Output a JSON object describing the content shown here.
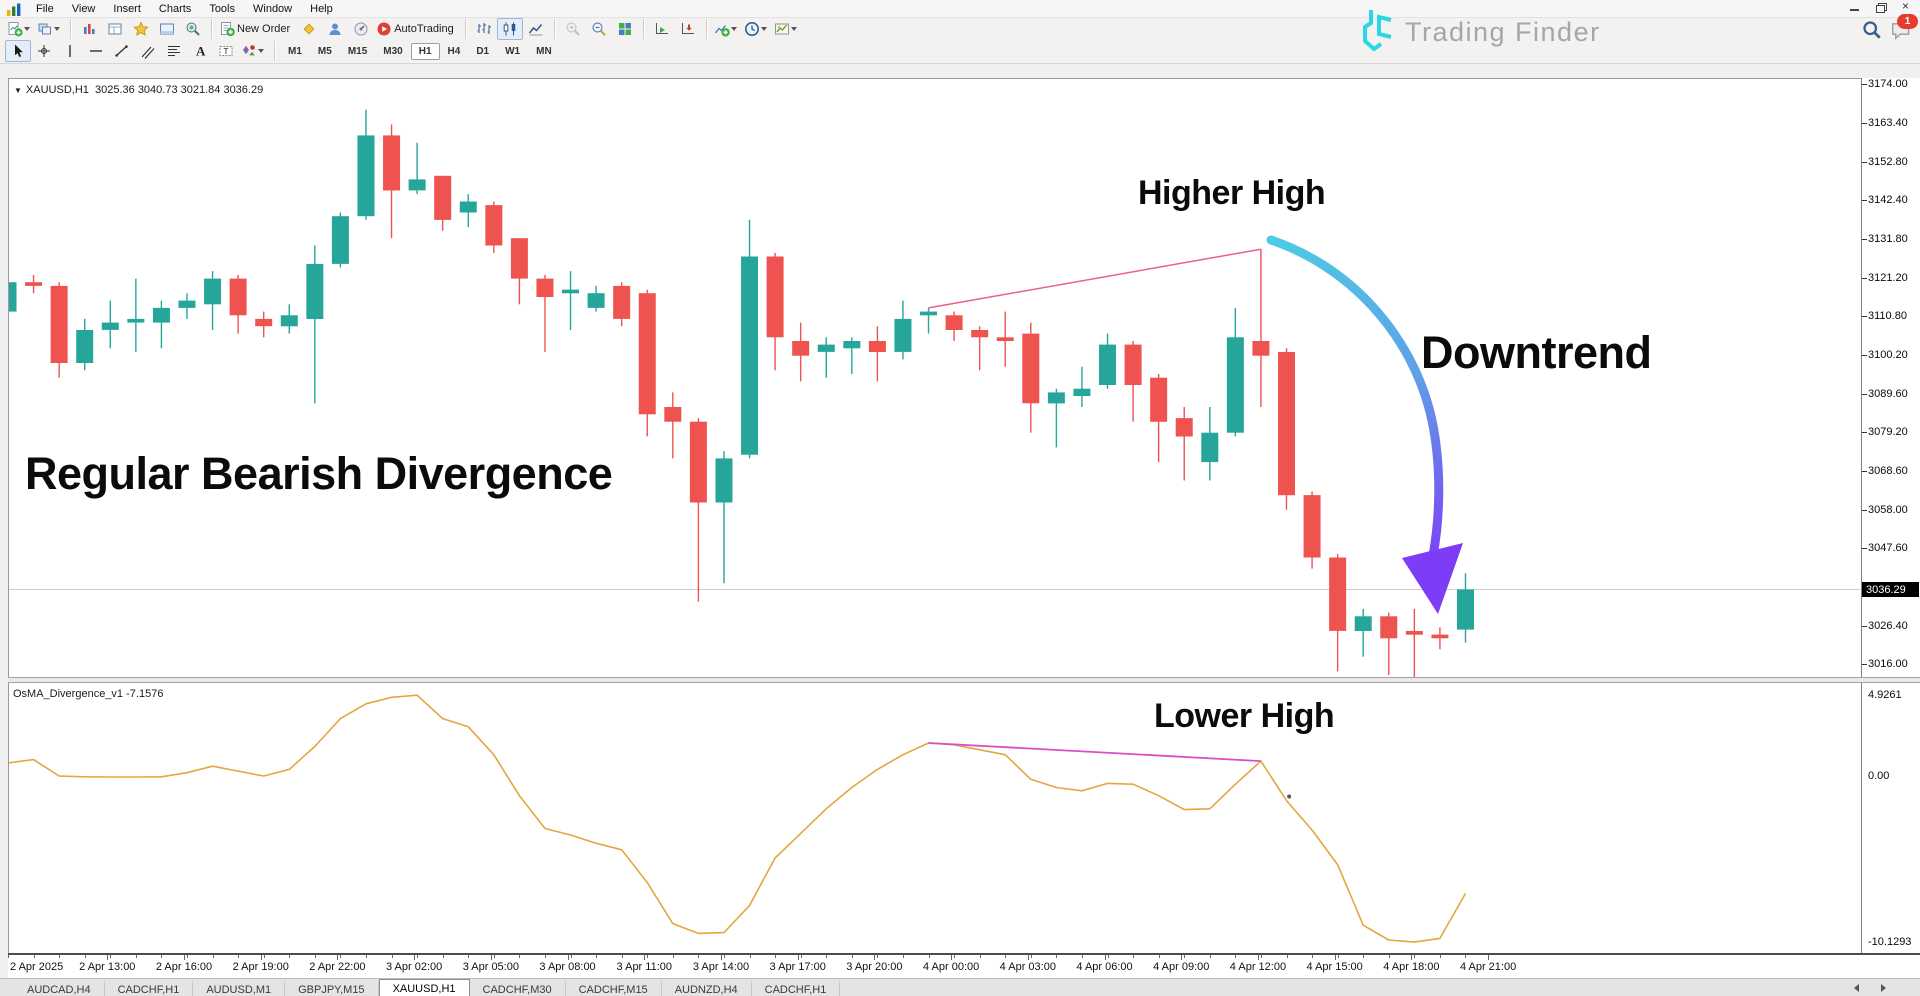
{
  "menu": {
    "items": [
      "File",
      "View",
      "Insert",
      "Charts",
      "Tools",
      "Window",
      "Help"
    ]
  },
  "window_controls": [
    {
      "name": "minimize-button"
    },
    {
      "name": "restore-button"
    },
    {
      "name": "close-button"
    }
  ],
  "header": {
    "logo_text": "Trading Finder",
    "notification_count": "1",
    "icons": [
      "search-icon",
      "chat-icon"
    ]
  },
  "toolbar_main": {
    "groups": [
      {
        "items": [
          {
            "icon": "new-chart",
            "dropdown": true
          },
          {
            "icon": "profiles",
            "dropdown": true
          }
        ]
      },
      {
        "items": [
          {
            "icon": "market-watch"
          },
          {
            "icon": "data-window"
          },
          {
            "icon": "navigator"
          },
          {
            "icon": "terminal"
          },
          {
            "icon": "strategy-tester"
          }
        ]
      },
      {
        "items": [
          {
            "icon": "new-order",
            "label": "New Order"
          },
          {
            "icon": "metaeditor"
          },
          {
            "icon": "community"
          },
          {
            "icon": "signals"
          },
          {
            "icon": "autotrading",
            "label": "AutoTrading"
          }
        ]
      },
      {
        "items": [
          {
            "icon": "bar-chart"
          },
          {
            "icon": "candlestick",
            "pressed": true
          },
          {
            "icon": "line-chart"
          }
        ]
      },
      {
        "items": [
          {
            "icon": "zoom-in",
            "disabled": true
          },
          {
            "icon": "zoom-out"
          },
          {
            "icon": "tile-windows"
          }
        ]
      },
      {
        "items": [
          {
            "icon": "auto-scroll"
          },
          {
            "icon": "chart-shift"
          }
        ]
      },
      {
        "items": [
          {
            "icon": "indicators",
            "dropdown": true
          },
          {
            "icon": "periods",
            "dropdown": true
          },
          {
            "icon": "templates",
            "dropdown": true
          }
        ]
      }
    ]
  },
  "toolbar_draw": {
    "tools": [
      {
        "icon": "cursor",
        "pressed": true
      },
      {
        "icon": "crosshair"
      },
      {
        "icon": "vertical-line"
      },
      {
        "icon": "horizontal-line"
      },
      {
        "icon": "trendline"
      },
      {
        "icon": "channel"
      },
      {
        "icon": "fibonacci"
      },
      {
        "icon": "text"
      },
      {
        "icon": "label"
      },
      {
        "icon": "shapes",
        "dropdown": true
      }
    ],
    "timeframes": [
      "M1",
      "M5",
      "M15",
      "M30",
      "H1",
      "H4",
      "D1",
      "W1",
      "MN"
    ],
    "active_timeframe": "H1"
  },
  "chart_data": {
    "type": "candlestick",
    "symbol": "XAUUSD,H1",
    "symbol_line": "XAUUSD,H1  3025.36 3040.73 3021.84 3036.29",
    "ohlc_display": {
      "open": "3025.36",
      "high": "3040.73",
      "low": "3021.84",
      "close": "3036.29"
    },
    "up_color": "#26a69a",
    "down_color": "#ef5350",
    "price_axis": {
      "max": 3174.0,
      "min": 3016.0,
      "step": 10.6,
      "ticks": [
        "3174.00",
        "3163.40",
        "3152.80",
        "3142.40",
        "3131.80",
        "3121.20",
        "3110.80",
        "3100.20",
        "3089.60",
        "3079.20",
        "3068.60",
        "3058.00",
        "3047.60",
        "3026.40",
        "3016.00"
      ],
      "current_price": "3036.29",
      "current_price_value": 3036.29
    },
    "time_labels": [
      "2 Apr 2025",
      "2 Apr 13:00",
      "2 Apr 16:00",
      "2 Apr 19:00",
      "2 Apr 22:00",
      "3 Apr 02:00",
      "3 Apr 05:00",
      "3 Apr 08:00",
      "3 Apr 11:00",
      "3 Apr 14:00",
      "3 Apr 17:00",
      "3 Apr 20:00",
      "4 Apr 00:00",
      "4 Apr 03:00",
      "4 Apr 06:00",
      "4 Apr 09:00",
      "4 Apr 12:00",
      "4 Apr 15:00",
      "4 Apr 18:00",
      "4 Apr 21:00"
    ],
    "candles": [
      [
        3112,
        3121,
        3110,
        3120
      ],
      [
        3120,
        3122,
        3117,
        3119
      ],
      [
        3119,
        3120,
        3094,
        3098
      ],
      [
        3098,
        3110,
        3096,
        3107
      ],
      [
        3107,
        3115,
        3102,
        3109
      ],
      [
        3109,
        3121,
        3101,
        3110
      ],
      [
        3109,
        3115,
        3102,
        3113
      ],
      [
        3113,
        3117,
        3110,
        3115
      ],
      [
        3114,
        3123,
        3107,
        3121
      ],
      [
        3121,
        3122,
        3106,
        3111
      ],
      [
        3110,
        3112,
        3105,
        3108
      ],
      [
        3108,
        3114,
        3106,
        3111
      ],
      [
        3110,
        3130,
        3087,
        3125
      ],
      [
        3125,
        3139,
        3124,
        3138
      ],
      [
        3138,
        3167,
        3137,
        3160
      ],
      [
        3160,
        3163,
        3132,
        3145
      ],
      [
        3145,
        3158,
        3144,
        3148
      ],
      [
        3149,
        3149,
        3134,
        3137
      ],
      [
        3139,
        3144,
        3135,
        3142
      ],
      [
        3141,
        3142,
        3128,
        3130
      ],
      [
        3132,
        3132,
        3114,
        3121
      ],
      [
        3121,
        3122,
        3101,
        3116
      ],
      [
        3117,
        3123,
        3107,
        3118
      ],
      [
        3113,
        3119,
        3112,
        3117
      ],
      [
        3119,
        3120,
        3108,
        3110
      ],
      [
        3117,
        3118,
        3078,
        3084
      ],
      [
        3086,
        3090,
        3072,
        3082
      ],
      [
        3082,
        3083,
        3033,
        3060
      ],
      [
        3060,
        3074,
        3038,
        3072
      ],
      [
        3073,
        3137,
        3072,
        3127
      ],
      [
        3127,
        3128,
        3096,
        3105
      ],
      [
        3104,
        3109,
        3093,
        3100
      ],
      [
        3101,
        3105,
        3094,
        3103
      ],
      [
        3102,
        3105,
        3095,
        3104
      ],
      [
        3104,
        3108,
        3093,
        3101
      ],
      [
        3101,
        3115,
        3099,
        3110
      ],
      [
        3111,
        3113,
        3106,
        3112
      ],
      [
        3111,
        3112,
        3104,
        3107
      ],
      [
        3107,
        3108,
        3096,
        3105
      ],
      [
        3105,
        3112,
        3097,
        3104
      ],
      [
        3106,
        3109,
        3079,
        3087
      ],
      [
        3087,
        3091,
        3075,
        3090
      ],
      [
        3089,
        3097,
        3086,
        3091
      ],
      [
        3092,
        3106,
        3091,
        3103
      ],
      [
        3103,
        3104,
        3082,
        3092
      ],
      [
        3094,
        3095,
        3071,
        3082
      ],
      [
        3083,
        3086,
        3066,
        3078
      ],
      [
        3071,
        3086,
        3066,
        3079
      ],
      [
        3079,
        3113,
        3078,
        3105
      ],
      [
        3104,
        3129,
        3086,
        3100
      ],
      [
        3101,
        3102,
        3058,
        3062
      ],
      [
        3062,
        3063,
        3042,
        3045
      ],
      [
        3045,
        3046,
        3014,
        3025
      ],
      [
        3025,
        3031,
        3018,
        3029
      ],
      [
        3029,
        3030,
        3013,
        3023
      ],
      [
        3025,
        3031,
        3012,
        3024
      ],
      [
        3024,
        3026,
        3020,
        3023
      ],
      [
        3025.36,
        3040.73,
        3021.84,
        3036.29
      ]
    ],
    "annotations": {
      "main": "Regular Bearish Divergence",
      "higher_high": "Higher High",
      "downtrend": "Downtrend",
      "lower_high": "Lower High"
    },
    "price_trendline": {
      "color": "#e8608e",
      "from": {
        "index": 36,
        "price": 3113
      },
      "to": {
        "index": 49,
        "price": 3129
      }
    },
    "arrow": {
      "gradient": [
        "#4ecbe4",
        "#5f9fe8",
        "#7d3cf5"
      ]
    },
    "osma": {
      "label": "OsMA_Divergence_v1",
      "value": "-7.1576",
      "color": "#e7a53f",
      "axis_labels": [
        "4.9261",
        "0.00",
        "-10.1293"
      ],
      "axis_values": [
        4.9261,
        0.0,
        -10.1293
      ],
      "values": [
        0.8,
        1.0,
        0.0,
        -0.05,
        -0.06,
        -0.06,
        -0.05,
        0.2,
        0.6,
        0.3,
        0.0,
        0.4,
        1.8,
        3.5,
        4.4,
        4.8,
        4.9261,
        3.5,
        3.0,
        1.3,
        -1.2,
        -3.2,
        -3.6,
        -4.1,
        -4.5,
        -6.5,
        -9.0,
        -9.6,
        -9.55,
        -7.9,
        -5.0,
        -3.5,
        -2.0,
        -0.7,
        0.4,
        1.3,
        2.01,
        1.9,
        1.6,
        1.3,
        -0.2,
        -0.7,
        -0.9,
        -0.45,
        -0.5,
        -1.2,
        -2.05,
        -2.0,
        -0.5,
        0.91,
        -1.5,
        -3.3,
        -5.4,
        -9.1,
        -10.0,
        -10.1293,
        -9.9,
        -7.1576
      ],
      "trendline": {
        "color": "#d94fc4",
        "from": {
          "index": 36,
          "value": 2.01
        },
        "to": {
          "index": 49,
          "value": 0.91
        }
      },
      "marker_dot": {
        "index": 50.1,
        "value": -1.25
      }
    }
  },
  "tabs": {
    "items": [
      "AUDCAD,H4",
      "CADCHF,H1",
      "AUDUSD,M1",
      "GBPJPY,M15",
      "XAUUSD,H1",
      "CADCHF,M30",
      "CADCHF,M15",
      "AUDNZD,H4",
      "CADCHF,H1"
    ],
    "active_index": 4
  }
}
